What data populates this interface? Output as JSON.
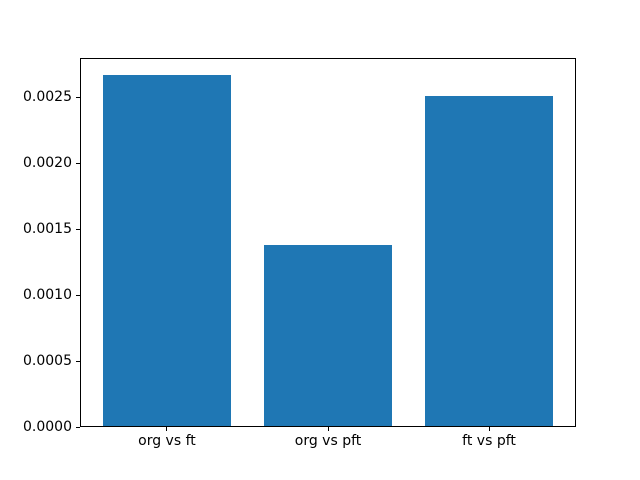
{
  "figure": {
    "background": "#ffffff",
    "spine_color": "#000000",
    "text_color": "#000000"
  },
  "chart_data": {
    "type": "bar",
    "title": "",
    "xlabel": "",
    "ylabel": "",
    "categories": [
      "org vs ft",
      "org vs pft",
      "ft vs pft"
    ],
    "values": [
      0.00267,
      0.00138,
      0.00251
    ],
    "series_color": "#1f77b4",
    "ylim": [
      0,
      0.0028
    ],
    "xlim": [
      -0.54,
      2.54
    ],
    "bar_width": 0.8,
    "yticks": [
      0,
      0.0005,
      0.001,
      0.0015,
      0.002,
      0.0025
    ],
    "ytick_labels": [
      "0.0000",
      "0.0005",
      "0.0010",
      "0.0015",
      "0.0020",
      "0.0025"
    ],
    "grid": false,
    "legend": "none"
  }
}
